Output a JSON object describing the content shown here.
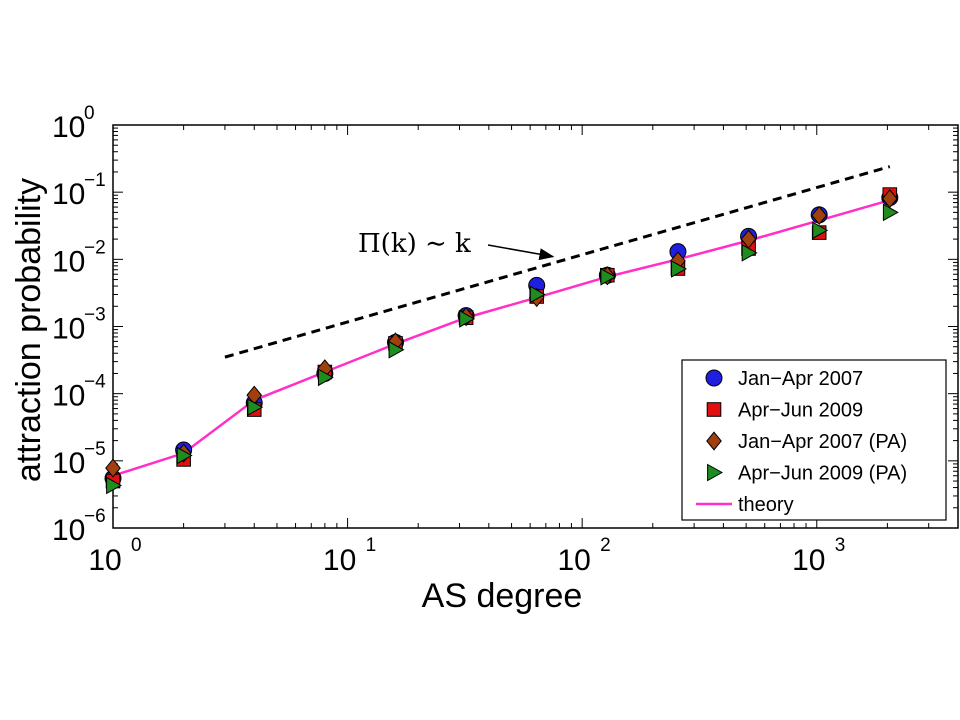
{
  "chart_data": {
    "type": "scatter",
    "xscale": "log",
    "yscale": "log",
    "xlabel": "AS degree",
    "ylabel": "attraction probability",
    "xlim": [
      1,
      4000
    ],
    "ylim": [
      1e-06,
      1
    ],
    "x_tick_labels": [
      {
        "value": 1,
        "base": "10",
        "exp": "0"
      },
      {
        "value": 10,
        "base": "10",
        "exp": "1"
      },
      {
        "value": 100,
        "base": "10",
        "exp": "2"
      },
      {
        "value": 1000,
        "base": "10",
        "exp": "3"
      }
    ],
    "y_tick_labels": [
      {
        "value": 1e-06,
        "base": "10",
        "exp": "−6"
      },
      {
        "value": 1e-05,
        "base": "10",
        "exp": "−5"
      },
      {
        "value": 0.0001,
        "base": "10",
        "exp": "−4"
      },
      {
        "value": 0.001,
        "base": "10",
        "exp": "−3"
      },
      {
        "value": 0.01,
        "base": "10",
        "exp": "−2"
      },
      {
        "value": 0.1,
        "base": "10",
        "exp": "−1"
      },
      {
        "value": 1,
        "base": "10",
        "exp": "0"
      }
    ],
    "grid": false,
    "legend_position": "bottom-right",
    "series": [
      {
        "name": "Jan−Apr 2007",
        "marker": "circle",
        "color": "#1f1fe0",
        "x": [
          1,
          2,
          4,
          8,
          16,
          32,
          64,
          128,
          256,
          512,
          1024,
          2048
        ],
        "y": [
          5.5e-06,
          1.45e-05,
          7.3e-05,
          0.0002,
          0.00058,
          0.00145,
          0.0041,
          0.0058,
          0.013,
          0.022,
          0.046,
          0.083
        ]
      },
      {
        "name": "Apr−Jun 2009",
        "marker": "square",
        "color": "#e01010",
        "x": [
          1,
          2,
          4,
          8,
          16,
          32,
          64,
          128,
          256,
          512,
          1024,
          2048
        ],
        "y": [
          5e-06,
          1.05e-05,
          5.8e-05,
          0.00021,
          0.00056,
          0.00135,
          0.0028,
          0.0058,
          0.0073,
          0.0145,
          0.025,
          0.092
        ]
      },
      {
        "name": "Jan−Apr 2007 (PA)",
        "marker": "diamond",
        "color": "#a0400e",
        "x": [
          1,
          2,
          4,
          8,
          16,
          32,
          64,
          128,
          256,
          512,
          1024,
          2048
        ],
        "y": [
          7.8e-06,
          1.3e-05,
          9.5e-05,
          0.000235,
          0.00059,
          0.0014,
          0.0027,
          0.0057,
          0.0095,
          0.02,
          0.045,
          0.08
        ]
      },
      {
        "name": "Apr−Jun 2009 (PA)",
        "marker": "triangle-right",
        "color": "#1e8c1e",
        "x": [
          1,
          2,
          4,
          8,
          16,
          32,
          64,
          128,
          256,
          512,
          1024,
          2048
        ],
        "y": [
          4.3e-06,
          1.2e-05,
          6.3e-05,
          0.000175,
          0.00045,
          0.0013,
          0.003,
          0.0055,
          0.0072,
          0.0125,
          0.027,
          0.05
        ]
      },
      {
        "name": "theory",
        "marker": "line",
        "color": "#ff2fc8",
        "x": [
          1,
          2,
          4,
          8,
          16,
          32,
          64,
          128,
          256,
          512,
          1024,
          2048
        ],
        "y": [
          6e-06,
          1.3e-05,
          8e-05,
          0.00021,
          0.00055,
          0.00135,
          0.0027,
          0.0055,
          0.01,
          0.019,
          0.038,
          0.076
        ]
      }
    ],
    "reference_line": {
      "style": "dashed",
      "color": "#000000",
      "x": [
        3,
        2048
      ],
      "y": [
        0.00035,
        0.24
      ]
    },
    "annotation": {
      "text": "Π(k) ∼ k",
      "arrow_to": {
        "x": 75,
        "y": 0.011
      }
    }
  }
}
